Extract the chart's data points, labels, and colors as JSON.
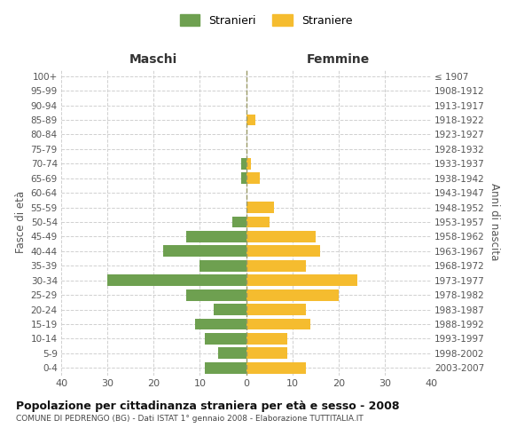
{
  "age_groups": [
    "100+",
    "95-99",
    "90-94",
    "85-89",
    "80-84",
    "75-79",
    "70-74",
    "65-69",
    "60-64",
    "55-59",
    "50-54",
    "45-49",
    "40-44",
    "35-39",
    "30-34",
    "25-29",
    "20-24",
    "15-19",
    "10-14",
    "5-9",
    "0-4"
  ],
  "birth_years": [
    "≤ 1907",
    "1908-1912",
    "1913-1917",
    "1918-1922",
    "1923-1927",
    "1928-1932",
    "1933-1937",
    "1938-1942",
    "1943-1947",
    "1948-1952",
    "1953-1957",
    "1958-1962",
    "1963-1967",
    "1968-1972",
    "1973-1977",
    "1978-1982",
    "1983-1987",
    "1988-1992",
    "1993-1997",
    "1998-2002",
    "2003-2007"
  ],
  "maschi": [
    0,
    0,
    0,
    0,
    0,
    0,
    1,
    1,
    0,
    0,
    3,
    13,
    18,
    10,
    30,
    13,
    7,
    11,
    9,
    6,
    9
  ],
  "femmine": [
    0,
    0,
    0,
    2,
    0,
    0,
    1,
    3,
    0,
    6,
    5,
    15,
    16,
    13,
    24,
    20,
    13,
    14,
    9,
    9,
    13
  ],
  "male_color": "#6ea050",
  "female_color": "#f5bc2f",
  "grid_color": "#d0d0d0",
  "zero_line_color": "#999966",
  "title_main": "Popolazione per cittadinanza straniera per età e sesso - 2008",
  "title_sub": "COMUNE DI PEDRENGO (BG) - Dati ISTAT 1° gennaio 2008 - Elaborazione TUTTITALIA.IT",
  "xlabel_left": "Maschi",
  "xlabel_right": "Femmine",
  "ylabel_left": "Fasce di età",
  "ylabel_right": "Anni di nascita",
  "legend_male": "Stranieri",
  "legend_female": "Straniere",
  "xlim": 40,
  "background_color": "#ffffff"
}
